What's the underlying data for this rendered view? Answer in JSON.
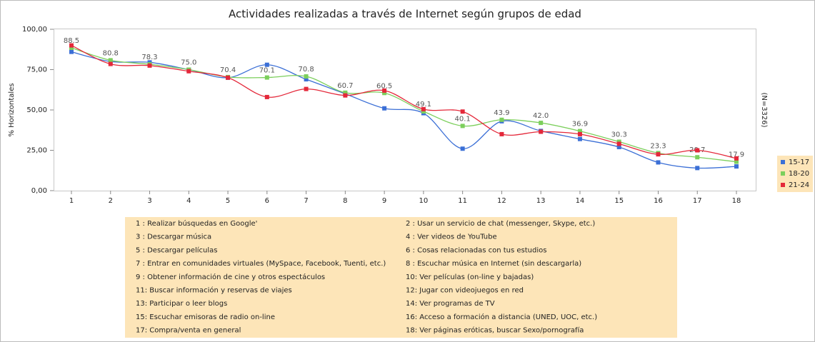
{
  "chart_data": {
    "type": "line",
    "title": "Actividades realizadas a través de Internet según grupos de edad",
    "y_label": "% Horizontales",
    "right_label": "(N=3326)",
    "categories": [
      "1",
      "2",
      "3",
      "4",
      "5",
      "6",
      "7",
      "8",
      "9",
      "10",
      "11",
      "12",
      "13",
      "14",
      "15",
      "16",
      "17",
      "18"
    ],
    "ylim": [
      0,
      100
    ],
    "yticks": [
      {
        "value": 0,
        "label": "0,00"
      },
      {
        "value": 25,
        "label": "25,00"
      },
      {
        "value": 50,
        "label": "50,00"
      },
      {
        "value": 75,
        "label": "75,00"
      },
      {
        "value": 100,
        "label": "100,00"
      }
    ],
    "legend_position": "right",
    "series": [
      {
        "name": "15-17",
        "color": "#3b6fd6",
        "values": [
          86,
          80,
          79.5,
          75,
          70,
          78,
          69,
          60,
          51,
          48,
          26,
          43,
          37,
          32,
          27,
          17.5,
          14,
          15
        ]
      },
      {
        "name": "18-20",
        "color": "#7ccf5c",
        "values": [
          88.5,
          80.8,
          78.3,
          75.0,
          70.4,
          70.1,
          70.8,
          60.7,
          60.5,
          49.1,
          40.1,
          43.9,
          42.0,
          36.9,
          30.3,
          23.3,
          20.7,
          17.9
        ],
        "value_labels": [
          "88.5",
          "80.8",
          "78.3",
          "75.0",
          "70.4",
          "70.1",
          "70.8",
          "60.7",
          "60.5",
          "49.1",
          "40.1",
          "43.9",
          "42.0",
          "36.9",
          "30.3",
          "23.3",
          "20.7",
          "17.9"
        ]
      },
      {
        "name": "21-24",
        "color": "#e4283a",
        "values": [
          90,
          78.5,
          77.5,
          74,
          70,
          58,
          63,
          59,
          62,
          50.5,
          49,
          35,
          36.5,
          35,
          29,
          22.5,
          25,
          20
        ]
      }
    ],
    "category_descriptions": [
      "1 :  Realizar búsquedas en Google'",
      "2 :  Usar un servicio de chat (messenger, Skype, etc.)",
      "3 :  Descargar música",
      "4 :  Ver videos de YouTube",
      "5 :  Descargar películas",
      "6 :  Cosas relacionadas con tus estudios",
      "7 :  Entrar en comunidades virtuales (MySpace, Facebook, Tuenti, etc.)",
      "8 :  Escuchar música en Internet (sin descargarla)",
      "9 :  Obtener información de cine y otros espectáculos",
      "10:  Ver películas (on-line y bajadas)",
      "11:  Buscar información y reservas de viajes",
      "12:  Jugar con videojuegos en red",
      "13:  Participar o leer blogs",
      "14:  Ver programas de TV",
      "15:  Escuchar emisoras de radio on-line",
      "16:  Acceso a formación a distancia (UNED, UOC, etc.)",
      "17:  Compra/venta en general",
      "18:  Ver páginas eróticas, buscar Sexo/pornografía"
    ]
  }
}
